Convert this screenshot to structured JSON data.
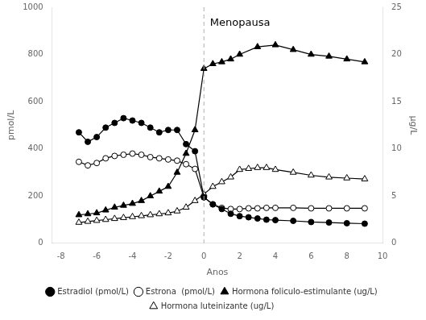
{
  "chart_data": {
    "type": "line",
    "xlabel": "Anos",
    "ylabel": "pmol/L",
    "y2label": "μg/L",
    "xlim": [
      -8.5,
      10
    ],
    "xticks": [
      -8,
      -6,
      -4,
      -2,
      0,
      2,
      4,
      6,
      8,
      10
    ],
    "ylim": [
      0,
      1000
    ],
    "yticks": [
      0,
      200,
      400,
      600,
      800,
      1000
    ],
    "y2lim": [
      0,
      25
    ],
    "y2ticks": [
      0,
      5,
      10,
      15,
      20,
      25
    ],
    "grid": false,
    "legend": "bottom",
    "series": [
      {
        "name": "Estradiol (pmol/L)",
        "color": "#000000",
        "marker": "filled_circle",
        "line_style": "solid",
        "x": [
          -7,
          -6.5,
          -6,
          -5.5,
          -5,
          -4.5,
          -4,
          -3.5,
          -3,
          -2.5,
          -2,
          -1.5,
          -1,
          -0.5,
          0,
          0.5,
          1,
          1.5,
          2,
          2.5,
          3,
          3.5,
          4,
          5,
          6,
          7,
          8,
          9
        ],
        "values": [
          470,
          430,
          450,
          490,
          510,
          530,
          520,
          510,
          490,
          470,
          480,
          480,
          420,
          390,
          195,
          165,
          145,
          125,
          115,
          110,
          105,
          100,
          98,
          95,
          90,
          88,
          85,
          83
        ]
      },
      {
        "name": "Estrona  (pmol/L)",
        "color": "#000000",
        "marker": "open_circle",
        "line_style": "solid",
        "x": [
          -7,
          -6.5,
          -6,
          -5.5,
          -5,
          -4.5,
          -4,
          -3.5,
          -3,
          -2.5,
          -2,
          -1.5,
          -1,
          -0.5,
          0,
          0.5,
          1,
          1.5,
          2,
          2.5,
          3,
          3.5,
          4,
          5,
          6,
          7,
          8,
          9
        ],
        "values": [
          345,
          330,
          340,
          360,
          370,
          375,
          380,
          375,
          365,
          360,
          355,
          350,
          335,
          315,
          195,
          165,
          150,
          145,
          145,
          148,
          148,
          150,
          150,
          150,
          148,
          148,
          148,
          148
        ]
      },
      {
        "name": "Hormona foliculo-estimulante (ug/L)",
        "color": "#000000",
        "marker": "filled_triangle",
        "line_style": "solid",
        "axis": "y2",
        "x": [
          -7,
          -6.5,
          -6,
          -5.5,
          -5,
          -4.5,
          -4,
          -3.5,
          -3,
          -2.5,
          -2,
          -1.5,
          -1,
          -0.5,
          0,
          0.5,
          1,
          1.5,
          2,
          3,
          4,
          5,
          6,
          7,
          8,
          9
        ],
        "values": [
          3.0,
          3.1,
          3.2,
          3.5,
          3.8,
          4.0,
          4.2,
          4.5,
          5.0,
          5.5,
          6.0,
          7.5,
          9.5,
          12.0,
          18.5,
          19.0,
          19.2,
          19.5,
          20.0,
          20.8,
          21.0,
          20.5,
          20.0,
          19.8,
          19.5,
          19.2
        ]
      },
      {
        "name": "Hormona luteinizante (ug/L)",
        "color": "#000000",
        "marker": "open_triangle",
        "line_style": "solid",
        "axis": "y2",
        "x": [
          -7,
          -6.5,
          -6,
          -5.5,
          -5,
          -4.5,
          -4,
          -3.5,
          -3,
          -2.5,
          -2,
          -1.5,
          -1,
          -0.5,
          0,
          0.5,
          1,
          1.5,
          2,
          2.5,
          3,
          3.5,
          4,
          5,
          6,
          7,
          8,
          9
        ],
        "values": [
          2.2,
          2.3,
          2.4,
          2.5,
          2.6,
          2.7,
          2.8,
          2.9,
          3.0,
          3.1,
          3.2,
          3.4,
          3.8,
          4.5,
          5.2,
          6.0,
          6.5,
          7.0,
          7.8,
          7.9,
          8.0,
          8.0,
          7.8,
          7.5,
          7.2,
          7.0,
          6.9,
          6.8
        ]
      }
    ],
    "annotations": [
      {
        "text": "Menopausa",
        "x": 0.25,
        "y": 955
      }
    ],
    "vlines": [
      {
        "x": 0,
        "color": "#b0b0b0",
        "line_style": "dashed"
      }
    ]
  }
}
